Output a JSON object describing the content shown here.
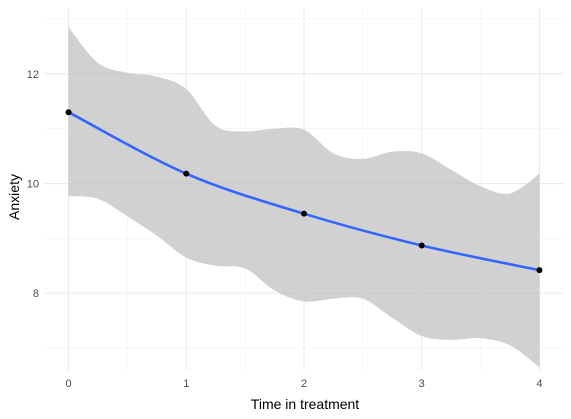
{
  "chart_data": {
    "type": "line",
    "title": "",
    "xlabel": "Time in treatment",
    "ylabel": "Anxiety",
    "xlim": [
      -0.2,
      4.2
    ],
    "ylim": [
      6.6,
      13.2
    ],
    "x_ticks": [
      0,
      1,
      2,
      3,
      4
    ],
    "y_ticks": [
      8,
      10,
      12
    ],
    "x_tick_labels": [
      "0",
      "1",
      "2",
      "3",
      "4"
    ],
    "y_tick_labels": [
      "8",
      "10",
      "12"
    ],
    "grid": true,
    "legend": "none",
    "series": [
      {
        "style": "line",
        "color": "#3366ff",
        "x": [
          0,
          1,
          2,
          3,
          4
        ],
        "y": [
          11.3,
          10.18,
          9.45,
          8.87,
          8.42
        ]
      },
      {
        "style": "points",
        "color": "#000000",
        "x": [
          0,
          1,
          2,
          3,
          4
        ],
        "y": [
          11.3,
          10.18,
          9.45,
          8.87,
          8.42
        ]
      }
    ],
    "confidence_band": {
      "color": "#bebebe",
      "x": [
        0.0,
        0.25,
        0.5,
        0.75,
        1.0,
        1.25,
        1.5,
        1.75,
        2.0,
        2.25,
        2.5,
        2.75,
        3.0,
        3.25,
        3.5,
        3.75,
        4.0
      ],
      "upper": [
        12.85,
        12.2,
        12.02,
        11.95,
        11.72,
        11.05,
        10.95,
        11.0,
        10.98,
        10.55,
        10.45,
        10.58,
        10.55,
        10.25,
        9.95,
        9.82,
        10.18
      ],
      "lower": [
        9.77,
        9.72,
        9.4,
        9.05,
        8.65,
        8.5,
        8.45,
        8.05,
        7.85,
        7.9,
        7.9,
        7.55,
        7.22,
        7.15,
        7.18,
        7.05,
        6.65
      ]
    }
  }
}
